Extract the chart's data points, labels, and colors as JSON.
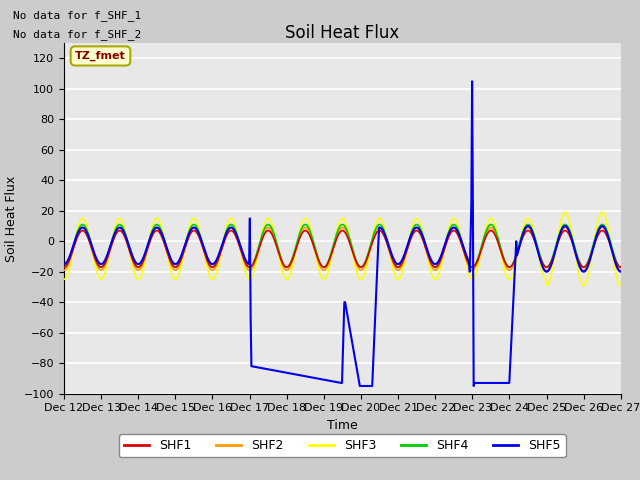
{
  "title": "Soil Heat Flux",
  "xlabel": "Time",
  "ylabel": "Soil Heat Flux",
  "ylim": [
    -100,
    130
  ],
  "yticks": [
    -100,
    -80,
    -60,
    -40,
    -20,
    0,
    20,
    40,
    60,
    80,
    100,
    120
  ],
  "xlim": [
    0,
    15
  ],
  "xtick_labels": [
    "Dec 12",
    "Dec 13",
    "Dec 14",
    "Dec 15",
    "Dec 16",
    "Dec 17",
    "Dec 18",
    "Dec 19",
    "Dec 20",
    "Dec 21",
    "Dec 22",
    "Dec 23",
    "Dec 24",
    "Dec 25",
    "Dec 26",
    "Dec 27"
  ],
  "no_data_text_1": "No data for f_SHF_1",
  "no_data_text_2": "No data for f_SHF_2",
  "legend_label": "TZ_fmet",
  "colors": {
    "SHF1": "#dd0000",
    "SHF2": "#ff9900",
    "SHF3": "#ffff00",
    "SHF4": "#00cc00",
    "SHF5": "#0000ee"
  },
  "fig_bg": "#cccccc",
  "plot_bg": "#e8e8e8",
  "title_fontsize": 12,
  "axis_label_fontsize": 9,
  "tick_fontsize": 8
}
